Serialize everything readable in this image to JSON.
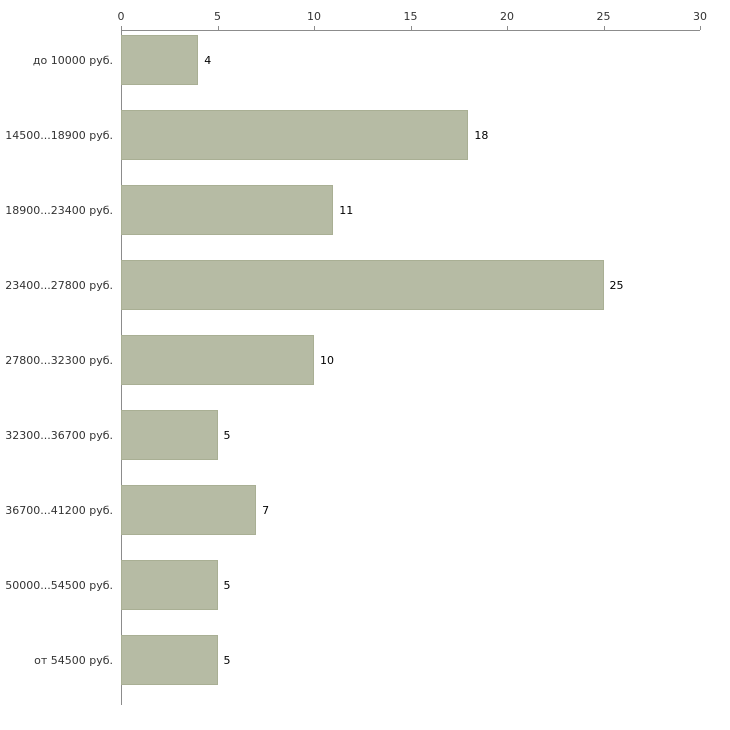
{
  "chart_data": {
    "type": "bar",
    "orientation": "horizontal",
    "title": "",
    "xlabel": "",
    "ylabel": "",
    "categories": [
      "до 10000 руб.",
      "14500...18900 руб.",
      "18900...23400 руб.",
      "23400...27800 руб.",
      "27800...32300 руб.",
      "32300...36700 руб.",
      "36700...41200 руб.",
      "50000...54500 руб.",
      "от 54500 руб."
    ],
    "values": [
      4,
      18,
      11,
      25,
      10,
      5,
      7,
      5,
      5
    ],
    "xlim": [
      0,
      30
    ],
    "x_ticks": [
      0,
      5,
      10,
      15,
      20,
      25,
      30
    ],
    "axis_position": "top",
    "grid": false,
    "legend": false,
    "bar_color": "#b6bba4",
    "bar_border_color": "#a9af94",
    "axis_color": "#8c8c8c",
    "text_color": "#333333",
    "value_label_color": "#000000",
    "background_color": "#ffffff"
  }
}
